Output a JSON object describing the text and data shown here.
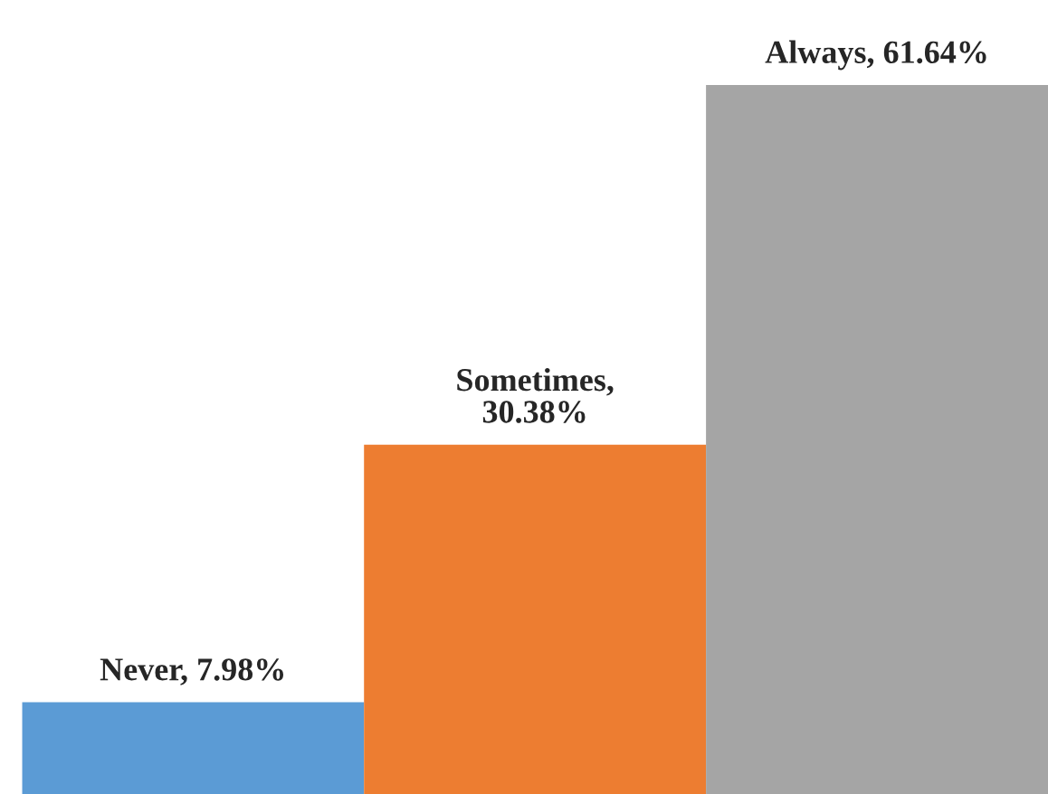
{
  "chart_data": {
    "type": "bar",
    "categories": [
      null,
      null,
      null
    ],
    "values": [
      7.98,
      30.38,
      61.64
    ],
    "colors": [
      "#5b9bd5",
      "#ed7d31",
      "#a5a5a5"
    ],
    "value_labels": [
      "Never, 7.98%",
      "Sometimes,\n30.38%",
      "Always, 61.64%"
    ],
    "grid": false,
    "legend": false
  }
}
